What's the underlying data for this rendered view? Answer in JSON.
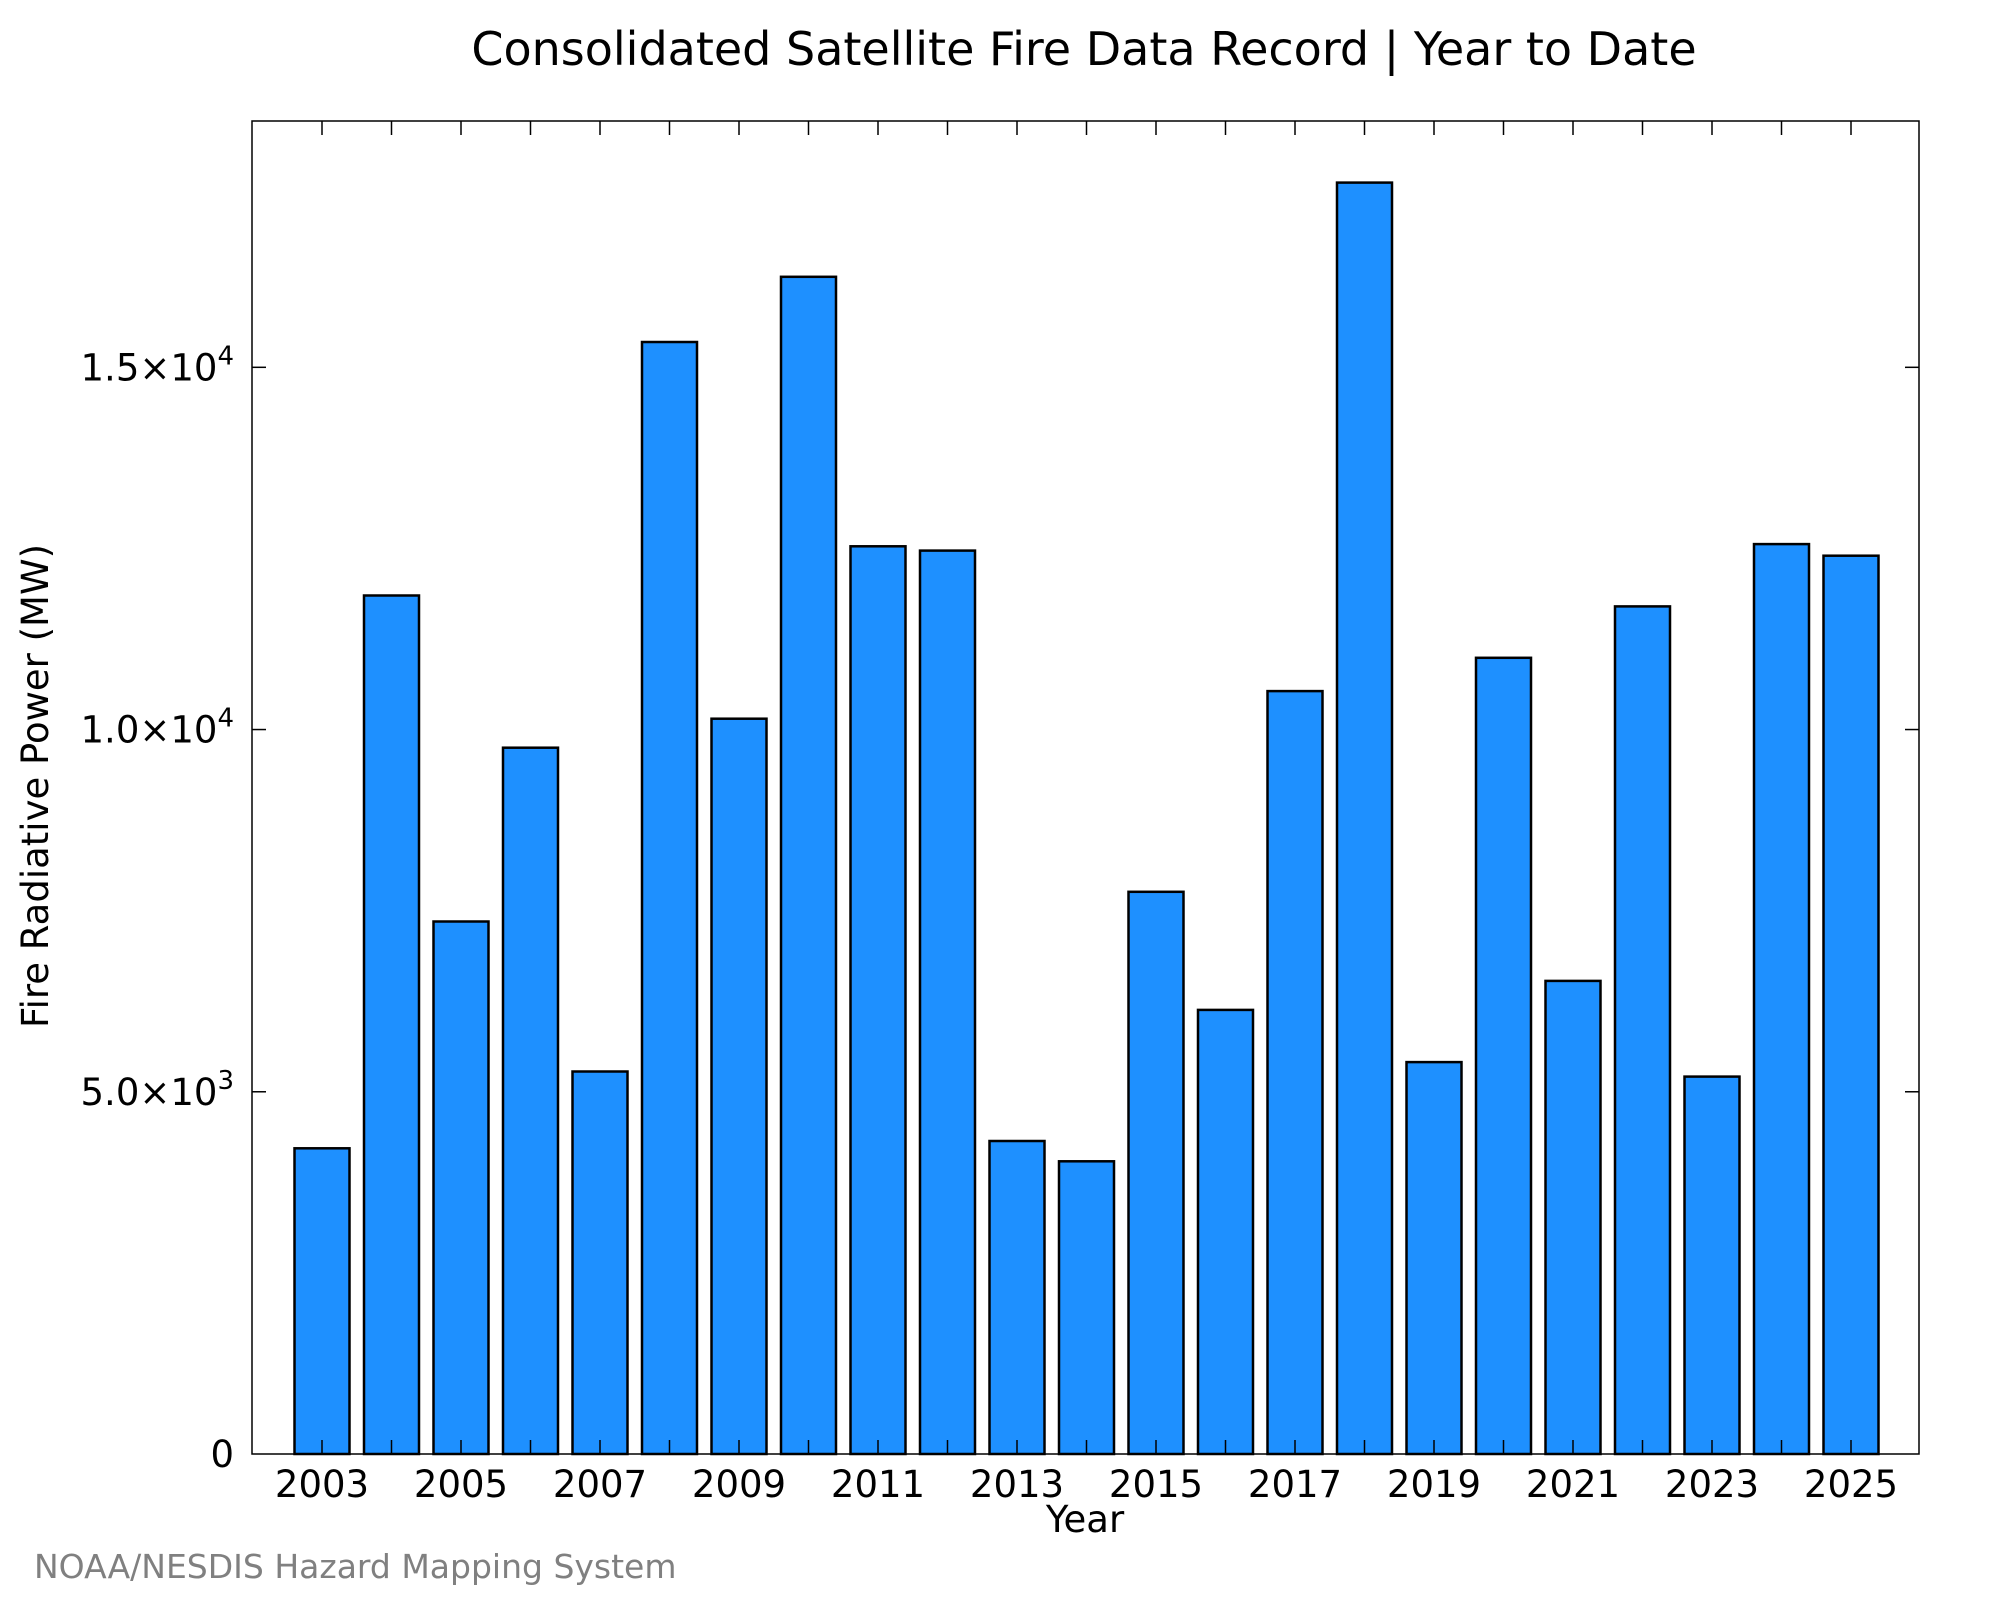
{
  "chart_data": {
    "type": "bar",
    "title": "Consolidated Satellite Fire Data Record | Year to Date",
    "xlabel": "Year",
    "ylabel": "Fire Radiative Power (MW)",
    "categories": [
      "2003",
      "2004",
      "2005",
      "2006",
      "2007",
      "2008",
      "2009",
      "2010",
      "2011",
      "2012",
      "2013",
      "2014",
      "2015",
      "2016",
      "2017",
      "2018",
      "2019",
      "2020",
      "2021",
      "2022",
      "2023",
      "2024",
      "2025"
    ],
    "values": [
      4220,
      11850,
      7350,
      9750,
      5280,
      15350,
      10150,
      16250,
      12530,
      12470,
      4320,
      4040,
      7760,
      6130,
      10530,
      17550,
      5410,
      10990,
      6530,
      11700,
      5210,
      12560,
      12400
    ],
    "ylim": [
      0,
      18400
    ],
    "y_ticks": [
      {
        "value": 0,
        "mantissa": "0",
        "exponent": ""
      },
      {
        "value": 5000,
        "mantissa": "5.0×10",
        "exponent": "3"
      },
      {
        "value": 10000,
        "mantissa": "1.0×10",
        "exponent": "4"
      },
      {
        "value": 15000,
        "mantissa": "1.5×10",
        "exponent": "4"
      }
    ],
    "x_tick_labels": [
      "2003",
      "2005",
      "2007",
      "2009",
      "2011",
      "2013",
      "2015",
      "2017",
      "2019",
      "2021",
      "2023",
      "2025"
    ],
    "bar_color": "#1e90ff",
    "grid": false,
    "legend": "none"
  },
  "credit": "NOAA/NESDIS Hazard Mapping System"
}
